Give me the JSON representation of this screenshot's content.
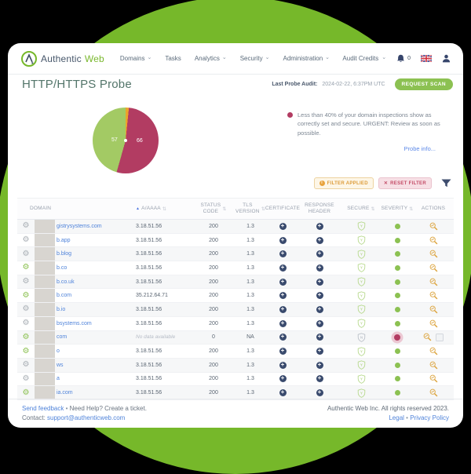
{
  "colors": {
    "blob_green": "#76b82a",
    "accent_green": "#8cc152",
    "maroon": "#b23c62",
    "orange": "#eca32b",
    "link_blue": "#4f83da",
    "navy": "#394a6d"
  },
  "icons": {
    "gear": "⚙",
    "chevron_down": "⌄",
    "sort": "⇅",
    "sort_asc": "▲",
    "close": "✕",
    "info": "i",
    "plus": "+"
  },
  "navbar": {
    "brand_part1": "Authentic",
    "brand_part2": "Web",
    "items": [
      {
        "label": "Domains",
        "dropdown": true
      },
      {
        "label": "Tasks",
        "dropdown": false
      },
      {
        "label": "Analytics",
        "dropdown": true
      },
      {
        "label": "Security",
        "dropdown": true
      },
      {
        "label": "Administration",
        "dropdown": true
      }
    ],
    "audit_credits_label": "Audit Credits",
    "notifications_count": "0"
  },
  "page": {
    "title": "HTTP/HTTPS Probe",
    "last_probe_audit_label": "Last Probe Audit:",
    "last_probe_audit_value": "2024-02-22, 6:37PM UTC",
    "request_scan_label": "REQUEST SCAN"
  },
  "chart_data": {
    "type": "pie",
    "title": "",
    "start": "top",
    "direction": "clockwise",
    "total": 125,
    "segments": [
      {
        "label": "",
        "value": 2,
        "color": "#eca32b"
      },
      {
        "label": "66",
        "value": 66,
        "color": "#b23c62"
      },
      {
        "label": "57",
        "value": 57,
        "color": "#a3ca64"
      }
    ]
  },
  "alert": {
    "text": "Less than 40% of your domain inspections show as correctly set and secure. URGENT: Review as soon as possible.",
    "link": "Probe info..."
  },
  "filters": {
    "applied_label": "FILTER APPLIED",
    "reset_label": "RESET FILTER"
  },
  "table": {
    "columns": [
      {
        "label": "DOMAIN",
        "sortable": false
      },
      {
        "label": "A/AAAA",
        "sortable": true,
        "sorted": "asc"
      },
      {
        "label": "STATUS CODE",
        "sortable": true
      },
      {
        "label": "TLS VERSION",
        "sortable": true
      },
      {
        "label": "CERTIFICATE",
        "sortable": false
      },
      {
        "label": "RESPONSE HEADER",
        "sortable": false
      },
      {
        "label": "SECURE",
        "sortable": true
      },
      {
        "label": "SEVERITY",
        "sortable": true
      },
      {
        "label": "ACTIONS",
        "sortable": false
      }
    ],
    "rows": [
      {
        "gear": "gray",
        "domain_redacted": true,
        "domain_visible": "gistrysystems.com",
        "a_aaaa": "3.18.51.56",
        "no_data": false,
        "status": "200",
        "tls": "1.3",
        "certificate": "expand",
        "response_header": "expand",
        "secure": "Y",
        "severity": "green",
        "actions": [
          "inspect"
        ]
      },
      {
        "gear": "gray",
        "domain_redacted": true,
        "domain_visible": "b.app",
        "a_aaaa": "3.18.51.56",
        "no_data": false,
        "status": "200",
        "tls": "1.3",
        "certificate": "expand",
        "response_header": "expand",
        "secure": "Y",
        "severity": "green",
        "actions": [
          "inspect"
        ]
      },
      {
        "gear": "gray",
        "domain_redacted": true,
        "domain_visible": "b.blog",
        "a_aaaa": "3.18.51.56",
        "no_data": false,
        "status": "200",
        "tls": "1.3",
        "certificate": "expand",
        "response_header": "expand",
        "secure": "Y",
        "severity": "green",
        "actions": [
          "inspect"
        ]
      },
      {
        "gear": "green",
        "domain_redacted": true,
        "domain_visible": "b.co",
        "a_aaaa": "3.18.51.56",
        "no_data": false,
        "status": "200",
        "tls": "1.3",
        "certificate": "expand",
        "response_header": "expand",
        "secure": "Y",
        "severity": "green",
        "actions": [
          "inspect"
        ]
      },
      {
        "gear": "gray",
        "domain_redacted": true,
        "domain_visible": "b.co.uk",
        "a_aaaa": "3.18.51.56",
        "no_data": false,
        "status": "200",
        "tls": "1.3",
        "certificate": "expand",
        "response_header": "expand",
        "secure": "Y",
        "severity": "green",
        "actions": [
          "inspect"
        ]
      },
      {
        "gear": "green",
        "domain_redacted": true,
        "domain_visible": "b.com",
        "a_aaaa": "35.212.64.71",
        "no_data": false,
        "status": "200",
        "tls": "1.3",
        "certificate": "expand",
        "response_header": "expand",
        "secure": "Y",
        "severity": "green",
        "actions": [
          "inspect"
        ]
      },
      {
        "gear": "gray",
        "domain_redacted": true,
        "domain_visible": "b.io",
        "a_aaaa": "3.18.51.56",
        "no_data": false,
        "status": "200",
        "tls": "1.3",
        "certificate": "expand",
        "response_header": "expand",
        "secure": "Y",
        "severity": "green",
        "actions": [
          "inspect"
        ]
      },
      {
        "gear": "gray",
        "domain_redacted": true,
        "domain_visible": "bsystems.com",
        "a_aaaa": "3.18.51.56",
        "no_data": false,
        "status": "200",
        "tls": "1.3",
        "certificate": "expand",
        "response_header": "expand",
        "secure": "Y",
        "severity": "green",
        "actions": [
          "inspect"
        ]
      },
      {
        "gear": "green",
        "domain_redacted": true,
        "domain_visible": "com",
        "a_aaaa": "No data available",
        "no_data": true,
        "status": "0",
        "tls": "NA",
        "certificate": "expand",
        "response_header": "expand",
        "secure": "N",
        "severity": "red",
        "actions": [
          "inspect",
          "checkbox"
        ]
      },
      {
        "gear": "green",
        "domain_redacted": true,
        "domain_visible": "o",
        "a_aaaa": "3.18.51.56",
        "no_data": false,
        "status": "200",
        "tls": "1.3",
        "certificate": "expand",
        "response_header": "expand",
        "secure": "Y",
        "severity": "green",
        "actions": [
          "inspect"
        ]
      },
      {
        "gear": "gray",
        "domain_redacted": true,
        "domain_visible": "ws",
        "a_aaaa": "3.18.51.56",
        "no_data": false,
        "status": "200",
        "tls": "1.3",
        "certificate": "expand",
        "response_header": "expand",
        "secure": "Y",
        "severity": "green",
        "actions": [
          "inspect"
        ]
      },
      {
        "gear": "gray",
        "domain_redacted": true,
        "domain_visible": "a",
        "a_aaaa": "3.18.51.56",
        "no_data": false,
        "status": "200",
        "tls": "1.3",
        "certificate": "expand",
        "response_header": "expand",
        "secure": "Y",
        "severity": "green",
        "actions": [
          "inspect"
        ]
      },
      {
        "gear": "green",
        "domain_redacted": true,
        "domain_visible": "ia.com",
        "a_aaaa": "3.18.51.56",
        "no_data": false,
        "status": "200",
        "tls": "1.3",
        "certificate": "expand",
        "response_header": "expand",
        "secure": "Y",
        "severity": "green",
        "actions": [
          "inspect"
        ]
      }
    ]
  },
  "footer": {
    "feedback_link": "Send feedback",
    "separator": "•",
    "help_text": "Need Help? Create a ticket.",
    "contact_label": "Contact:",
    "contact_email": "support@authenticweb.com",
    "rights": "Authentic Web Inc. All rights reserved 2023.",
    "legal_link": "Legal",
    "privacy_link": "Privacy Policy"
  }
}
